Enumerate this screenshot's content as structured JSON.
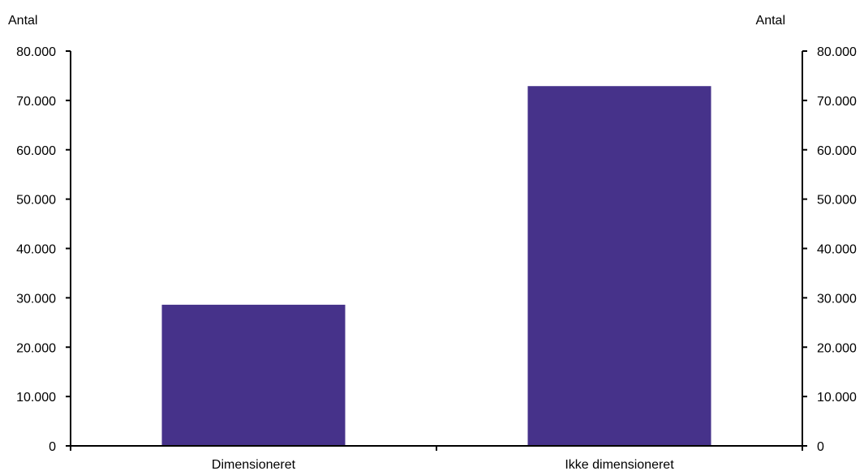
{
  "chart_data": {
    "type": "bar",
    "categories": [
      "Dimensioneret",
      "Ikke dimensioneret"
    ],
    "values": [
      28600,
      72900
    ],
    "bar_color": "#46328A",
    "ylabel_left": "Antal",
    "ylabel_right": "Antal",
    "ylim": [
      0,
      80000
    ],
    "yticks": [
      0,
      10000,
      20000,
      30000,
      40000,
      50000,
      60000,
      70000,
      80000
    ],
    "ytick_labels": [
      "0",
      "10.000",
      "20.000",
      "30.000",
      "40.000",
      "50.000",
      "60.000",
      "70.000",
      "80.000"
    ],
    "grid": false,
    "legend": "none"
  }
}
